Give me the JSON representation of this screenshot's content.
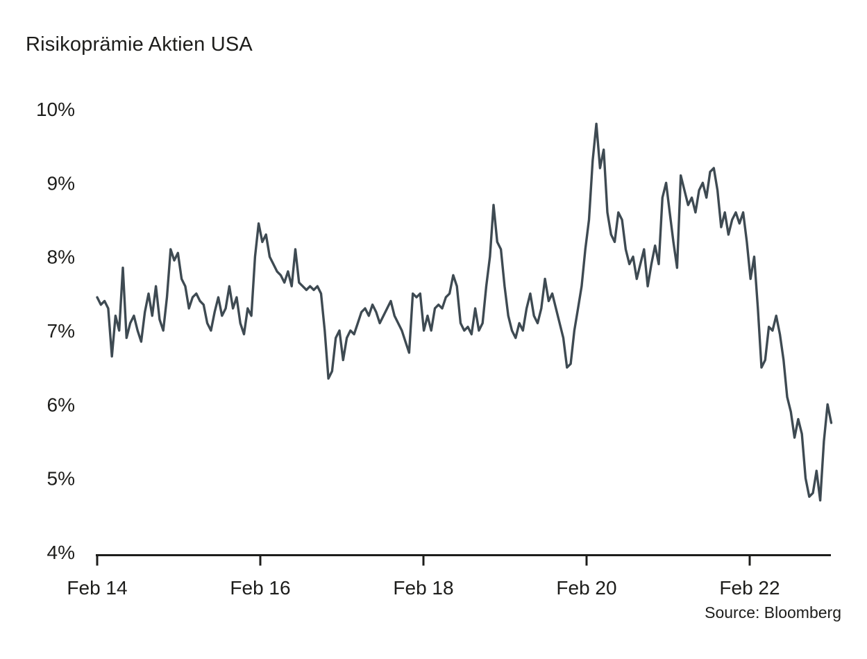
{
  "page": {
    "title": "Risikoprämie Aktien USA",
    "source": "Source: Bloomberg"
  },
  "chart_data": {
    "type": "line",
    "title": "Risikoprämie Aktien USA",
    "source": "Source: Bloomberg",
    "x_unit": "years since Feb 2014",
    "xlim": [
      0,
      9
    ],
    "ylim": [
      4,
      10
    ],
    "grid": false,
    "legend": "none",
    "line_color": "#3e4a52",
    "axis_color": "#1d1d1b",
    "x_ticks": [
      {
        "t": 0,
        "label": "Feb 14"
      },
      {
        "t": 2,
        "label": "Feb 16"
      },
      {
        "t": 4,
        "label": "Feb 18"
      },
      {
        "t": 6,
        "label": "Feb 20"
      },
      {
        "t": 8,
        "label": "Feb 22"
      }
    ],
    "y_ticks": [
      {
        "v": 4,
        "label": "4%"
      },
      {
        "v": 5,
        "label": "5%"
      },
      {
        "v": 6,
        "label": "6%"
      },
      {
        "v": 7,
        "label": "7%"
      },
      {
        "v": 8,
        "label": "8%"
      },
      {
        "v": 9,
        "label": "9%"
      },
      {
        "v": 10,
        "label": "10%"
      }
    ],
    "series": [
      {
        "name": "Risikoprämie Aktien USA",
        "unit": "%",
        "x_start": 0,
        "x_step": 0.045,
        "values": [
          7.45,
          7.35,
          7.4,
          7.3,
          6.65,
          7.2,
          7.0,
          7.85,
          6.9,
          7.1,
          7.2,
          7.0,
          6.85,
          7.25,
          7.5,
          7.2,
          7.6,
          7.15,
          7.0,
          7.45,
          8.1,
          7.95,
          8.05,
          7.7,
          7.6,
          7.3,
          7.45,
          7.5,
          7.4,
          7.35,
          7.1,
          7.0,
          7.25,
          7.45,
          7.2,
          7.3,
          7.6,
          7.3,
          7.45,
          7.1,
          6.95,
          7.3,
          7.2,
          8.0,
          8.45,
          8.2,
          8.3,
          8.0,
          7.9,
          7.8,
          7.75,
          7.65,
          7.8,
          7.6,
          8.1,
          7.65,
          7.6,
          7.55,
          7.6,
          7.55,
          7.6,
          7.5,
          7.0,
          6.35,
          6.45,
          6.9,
          7.0,
          6.6,
          6.9,
          7.0,
          6.95,
          7.1,
          7.25,
          7.3,
          7.2,
          7.35,
          7.25,
          7.1,
          7.2,
          7.3,
          7.4,
          7.2,
          7.1,
          7.0,
          6.85,
          6.7,
          7.5,
          7.45,
          7.5,
          7.0,
          7.2,
          7.0,
          7.3,
          7.35,
          7.3,
          7.45,
          7.5,
          7.75,
          7.6,
          7.1,
          7.0,
          7.05,
          6.95,
          7.3,
          7.0,
          7.1,
          7.6,
          8.0,
          8.7,
          8.2,
          8.1,
          7.6,
          7.2,
          7.0,
          6.9,
          7.1,
          7.0,
          7.3,
          7.5,
          7.2,
          7.1,
          7.3,
          7.7,
          7.4,
          7.5,
          7.3,
          7.1,
          6.9,
          6.5,
          6.55,
          7.0,
          7.3,
          7.6,
          8.1,
          8.5,
          9.3,
          9.8,
          9.2,
          9.45,
          8.6,
          8.3,
          8.2,
          8.6,
          8.5,
          8.1,
          7.9,
          8.0,
          7.7,
          7.9,
          8.1,
          7.6,
          7.9,
          8.15,
          7.9,
          8.8,
          9.0,
          8.6,
          8.2,
          7.85,
          9.1,
          8.9,
          8.7,
          8.8,
          8.6,
          8.9,
          9.0,
          8.8,
          9.15,
          9.2,
          8.9,
          8.4,
          8.6,
          8.3,
          8.5,
          8.6,
          8.45,
          8.6,
          8.2,
          7.7,
          8.0,
          7.3,
          6.5,
          6.6,
          7.05,
          7.0,
          7.2,
          6.95,
          6.6,
          6.1,
          5.9,
          5.55,
          5.8,
          5.6,
          5.0,
          4.75,
          4.8,
          5.1,
          4.7,
          5.5,
          6.0,
          5.75
        ]
      }
    ]
  }
}
